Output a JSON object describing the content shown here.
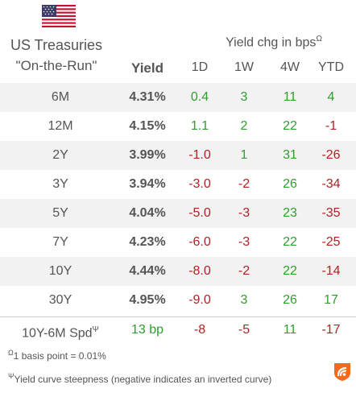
{
  "header": {
    "title_line1": "US Treasuries",
    "title_line2": "\"On-the-Run\"",
    "yield_label": "Yield",
    "change_label": "Yield chg in bps",
    "change_marker": "Ω",
    "columns": [
      "1D",
      "1W",
      "4W",
      "YTD"
    ],
    "flag_icon": "us-flag-icon"
  },
  "rows": [
    {
      "term": "6M",
      "yield": "4.31%",
      "d1": "0.4",
      "w1": "3",
      "w4": "11",
      "ytd": "4"
    },
    {
      "term": "12M",
      "yield": "4.15%",
      "d1": "1.1",
      "w1": "2",
      "w4": "22",
      "ytd": "-1"
    },
    {
      "term": "2Y",
      "yield": "3.99%",
      "d1": "-1.0",
      "w1": "1",
      "w4": "31",
      "ytd": "-26"
    },
    {
      "term": "3Y",
      "yield": "3.94%",
      "d1": "-3.0",
      "w1": "-2",
      "w4": "26",
      "ytd": "-34"
    },
    {
      "term": "5Y",
      "yield": "4.04%",
      "d1": "-5.0",
      "w1": "-3",
      "w4": "23",
      "ytd": "-35"
    },
    {
      "term": "7Y",
      "yield": "4.23%",
      "d1": "-6.0",
      "w1": "-3",
      "w4": "22",
      "ytd": "-25"
    },
    {
      "term": "10Y",
      "yield": "4.44%",
      "d1": "-8.0",
      "w1": "-2",
      "w4": "22",
      "ytd": "-14"
    },
    {
      "term": "30Y",
      "yield": "4.95%",
      "d1": "-9.0",
      "w1": "3",
      "w4": "26",
      "ytd": "17"
    }
  ],
  "spread": {
    "label": "10Y-6M Spd",
    "marker": "Ψ",
    "value": "13 bp",
    "d1": "-8",
    "w1": "-5",
    "w4": "11",
    "ytd": "-17"
  },
  "footnotes": {
    "f1_marker": "Ω",
    "f1_text": "1 basis point = 0.01%",
    "f2_marker": "Ψ",
    "f2_text": "Yield curve steepness (negative indicates an inverted curve)"
  },
  "colors": {
    "positive": "#2e9e2e",
    "negative": "#b22222",
    "row_shade": "#f2f2f2",
    "logo": "#f26a1b"
  }
}
